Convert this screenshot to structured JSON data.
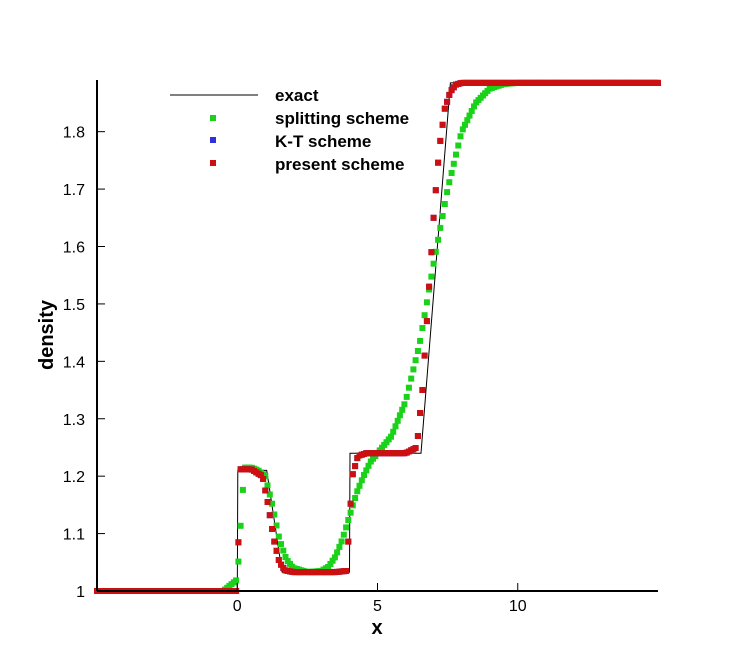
{
  "chart_data": {
    "type": "scatter",
    "xlabel": "x",
    "ylabel": "density",
    "xlim": [
      -5,
      15
    ],
    "ylim": [
      1.0,
      1.89
    ],
    "x_ticks": [
      0,
      5,
      10
    ],
    "x_tick_labels": [
      "0",
      "5",
      "10"
    ],
    "y_ticks": [
      1.0,
      1.1,
      1.2,
      1.3,
      1.4,
      1.5,
      1.6,
      1.7,
      1.8
    ],
    "y_tick_labels": [
      "1",
      "1.1",
      "1.2",
      "1.3",
      "1.4",
      "1.5",
      "1.6",
      "1.7",
      "1.8"
    ],
    "grid": false,
    "legend_position": "top-left",
    "exact": {
      "name": "exact",
      "color": "#000000",
      "style": "line",
      "x": [
        -5,
        0,
        0.02,
        1.05,
        1.6,
        4.0,
        4.02,
        6.55,
        7.6,
        15
      ],
      "y": [
        1.0,
        1.0,
        1.21,
        1.21,
        1.033,
        1.033,
        1.24,
        1.24,
        1.885,
        1.885
      ]
    },
    "series": [
      {
        "name": "splitting scheme",
        "color": "#19d219",
        "x": [
          -5,
          -4,
          -3,
          -2,
          -1,
          -0.5,
          0,
          0.25,
          0.5,
          0.75,
          1.0,
          1.25,
          1.5,
          1.75,
          2.0,
          2.5,
          3.0,
          3.25,
          3.5,
          3.75,
          4.0,
          4.25,
          4.5,
          4.75,
          5.0,
          5.5,
          6.0,
          6.5,
          7.0,
          7.5,
          8.0,
          8.5,
          9.0,
          9.5,
          10,
          11,
          12,
          13,
          14,
          15
        ],
        "y": [
          1.0,
          1.0,
          1.0,
          1.0,
          1.0,
          1.0,
          1.02,
          1.215,
          1.215,
          1.21,
          1.2,
          1.15,
          1.09,
          1.055,
          1.04,
          1.033,
          1.035,
          1.042,
          1.06,
          1.09,
          1.13,
          1.17,
          1.2,
          1.225,
          1.24,
          1.27,
          1.33,
          1.43,
          1.57,
          1.7,
          1.8,
          1.85,
          1.875,
          1.883,
          1.885,
          1.885,
          1.885,
          1.885,
          1.885,
          1.885
        ]
      },
      {
        "name": "K-T scheme",
        "color": "#3030e0",
        "x": [
          -5,
          -4,
          -3,
          -2,
          -1,
          0,
          0.1,
          0.5,
          0.9,
          1.1,
          1.3,
          1.5,
          1.7,
          2.0,
          2.5,
          3.0,
          3.5,
          3.9,
          4.0,
          4.1,
          4.3,
          4.6,
          5.0,
          5.5,
          6.0,
          6.4,
          6.6,
          6.8,
          7.0,
          7.2,
          7.4,
          7.6,
          7.8,
          8.0,
          8.5,
          9.0,
          10,
          11,
          12,
          13,
          14,
          15
        ],
        "y": [
          1.0,
          1.0,
          1.0,
          1.0,
          1.0,
          1.0,
          1.212,
          1.212,
          1.2,
          1.15,
          1.09,
          1.05,
          1.036,
          1.033,
          1.033,
          1.033,
          1.033,
          1.035,
          1.12,
          1.2,
          1.235,
          1.24,
          1.24,
          1.24,
          1.24,
          1.25,
          1.35,
          1.5,
          1.65,
          1.77,
          1.84,
          1.87,
          1.882,
          1.885,
          1.885,
          1.885,
          1.885,
          1.885,
          1.885,
          1.885,
          1.885,
          1.885
        ]
      },
      {
        "name": "present scheme",
        "color": "#cc1010",
        "x": [
          -5,
          -4,
          -3,
          -2,
          -1,
          0,
          0.1,
          0.5,
          0.9,
          1.1,
          1.3,
          1.5,
          1.7,
          2.0,
          2.5,
          3.0,
          3.5,
          3.9,
          4.0,
          4.1,
          4.3,
          4.6,
          5.0,
          5.5,
          6.0,
          6.4,
          6.6,
          6.8,
          7.0,
          7.2,
          7.4,
          7.6,
          7.8,
          8.0,
          8.5,
          9.0,
          10,
          11,
          12,
          13,
          14,
          15
        ],
        "y": [
          1.0,
          1.0,
          1.0,
          1.0,
          1.0,
          1.0,
          1.212,
          1.212,
          1.2,
          1.15,
          1.09,
          1.05,
          1.036,
          1.033,
          1.033,
          1.033,
          1.033,
          1.035,
          1.12,
          1.2,
          1.235,
          1.24,
          1.24,
          1.24,
          1.24,
          1.25,
          1.35,
          1.5,
          1.65,
          1.77,
          1.84,
          1.87,
          1.882,
          1.885,
          1.885,
          1.885,
          1.885,
          1.885,
          1.885,
          1.885,
          1.885,
          1.885
        ]
      }
    ]
  }
}
